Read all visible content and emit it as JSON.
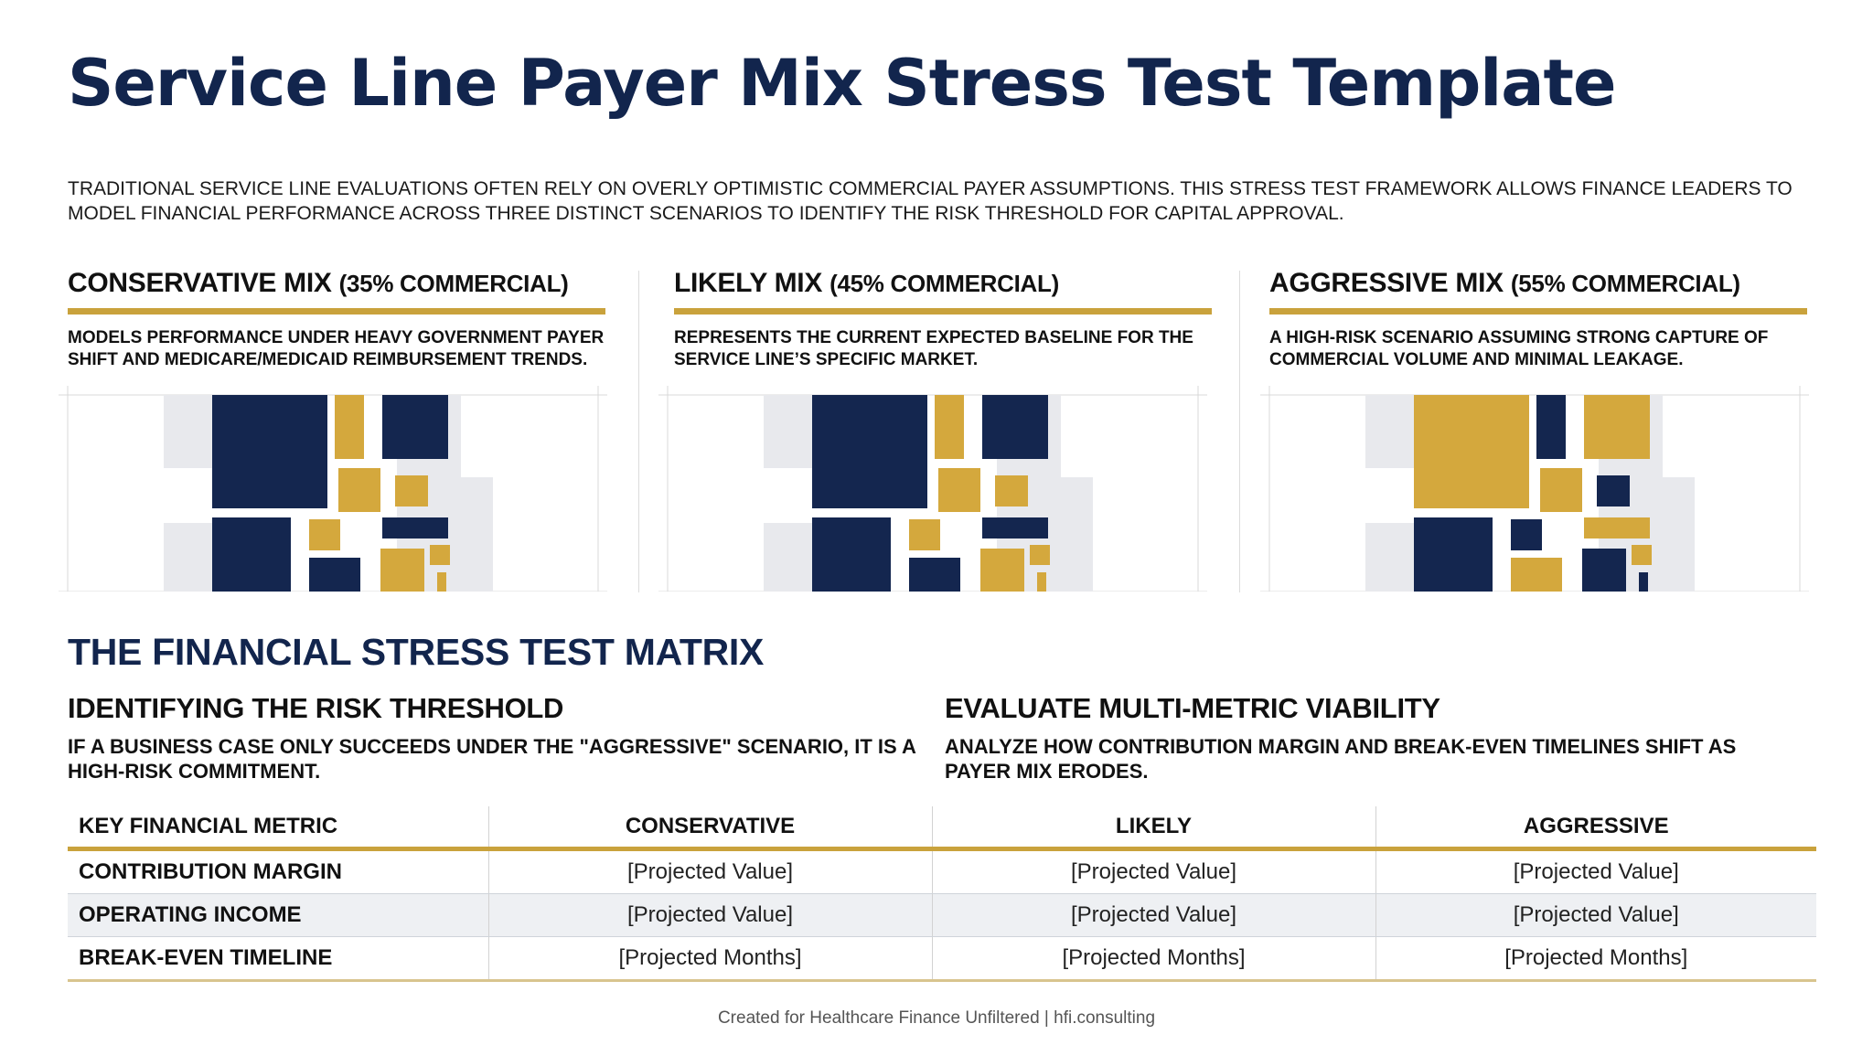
{
  "title": "Service Line Payer Mix Stress Test Template",
  "intro": "TRADITIONAL SERVICE LINE EVALUATIONS OFTEN RELY ON OVERLY OPTIMISTIC COMMERCIAL PAYER ASSUMPTIONS. THIS STRESS TEST FRAMEWORK ALLOWS FINANCE LEADERS TO MODEL FINANCIAL PERFORMANCE ACROSS THREE DISTINCT SCENARIOS TO IDENTIFY THE RISK THRESHOLD FOR CAPITAL APPROVAL.",
  "colors": {
    "navy": "#14264f",
    "gold": "#d4a83d",
    "ground": "#e8e9ed",
    "title": "#12254d",
    "rule": "#c9a23c"
  },
  "scenarios": [
    {
      "name": "CONSERVATIVE MIX",
      "mix": "(35% COMMERCIAL)",
      "description": "MODELS PERFORMANCE UNDER HEAVY GOVERNMENT PAYER SHIFT AND MEDICARE/MEDICAID REIMBURSEMENT TRENDS.",
      "tiles": [
        "navy",
        "gold",
        "navy",
        "gold",
        "gold",
        "gold",
        "navy",
        "navy",
        "navy",
        "gold",
        "gold",
        "gold"
      ]
    },
    {
      "name": "LIKELY MIX",
      "mix": "(45% COMMERCIAL)",
      "description": "REPRESENTS THE CURRENT EXPECTED BASELINE FOR THE SERVICE LINE’S SPECIFIC MARKET.",
      "tiles": [
        "navy",
        "gold",
        "navy",
        "gold",
        "gold",
        "gold",
        "navy",
        "navy",
        "navy",
        "gold",
        "gold",
        "gold"
      ]
    },
    {
      "name": "AGGRESSIVE MIX",
      "mix": "(55% COMMERCIAL)",
      "description": "A HIGH-RISK SCENARIO ASSUMING STRONG CAPTURE OF COMMERCIAL VOLUME AND MINIMAL LEAKAGE.",
      "tiles": [
        "gold",
        "navy",
        "gold",
        "gold",
        "navy",
        "navy",
        "gold",
        "navy",
        "gold",
        "navy",
        "gold",
        "navy"
      ]
    }
  ],
  "matrix_section": {
    "title": "THE FINANCIAL STRESS TEST MATRIX",
    "left_heading": "IDENTIFYING THE RISK THRESHOLD",
    "left_text": "IF A BUSINESS CASE ONLY SUCCEEDS UNDER THE \"AGGRESSIVE\" SCENARIO, IT IS A HIGH-RISK COMMITMENT.",
    "right_heading": "EVALUATE MULTI-METRIC VIABILITY",
    "right_text": "ANALYZE HOW CONTRIBUTION MARGIN AND BREAK-EVEN TIMELINES SHIFT AS PAYER MIX ERODES."
  },
  "table": {
    "headers": [
      "KEY FINANCIAL METRIC",
      "CONSERVATIVE",
      "LIKELY",
      "AGGRESSIVE"
    ],
    "rows": [
      [
        "CONTRIBUTION MARGIN",
        "[Projected Value]",
        "[Projected Value]",
        "[Projected Value]"
      ],
      [
        "OPERATING INCOME",
        "[Projected Value]",
        "[Projected Value]",
        "[Projected Value]"
      ],
      [
        "BREAK-EVEN TIMELINE",
        "[Projected Months]",
        "[Projected Months]",
        "[Projected Months]"
      ]
    ]
  },
  "footer": "Created for Healthcare Finance Unfiltered | hfi.consulting"
}
